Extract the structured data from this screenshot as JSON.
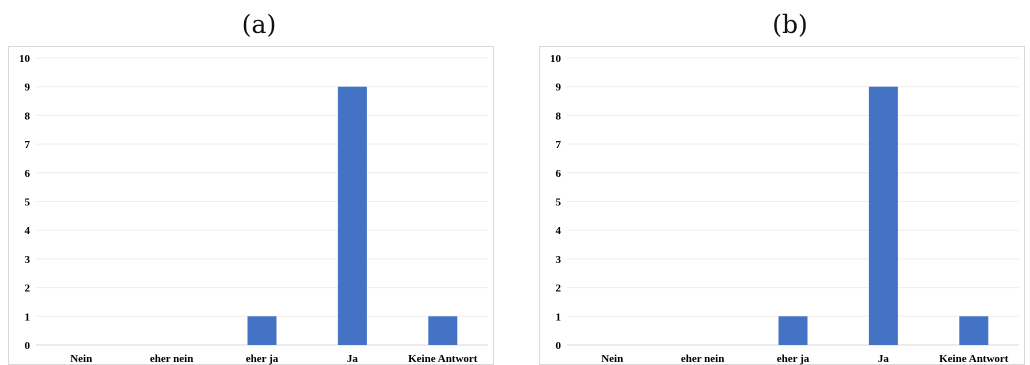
{
  "chart_data": [
    {
      "type": "bar",
      "title": "(a)",
      "categories": [
        "Nein",
        "eher nein",
        "eher ja",
        "Ja",
        "Keine Antwort"
      ],
      "values": [
        0,
        0,
        1,
        9,
        1
      ],
      "ylim": [
        0,
        10
      ],
      "yticks": [
        0,
        1,
        2,
        3,
        4,
        5,
        6,
        7,
        8,
        9,
        10
      ],
      "grid": true,
      "color": "#4472c4"
    },
    {
      "type": "bar",
      "title": "(b)",
      "categories": [
        "Nein",
        "eher nein",
        "eher ja",
        "Ja",
        "Keine Antwort"
      ],
      "values": [
        0,
        0,
        1,
        9,
        1
      ],
      "ylim": [
        0,
        10
      ],
      "yticks": [
        0,
        1,
        2,
        3,
        4,
        5,
        6,
        7,
        8,
        9,
        10
      ],
      "grid": true,
      "color": "#4472c4"
    }
  ]
}
